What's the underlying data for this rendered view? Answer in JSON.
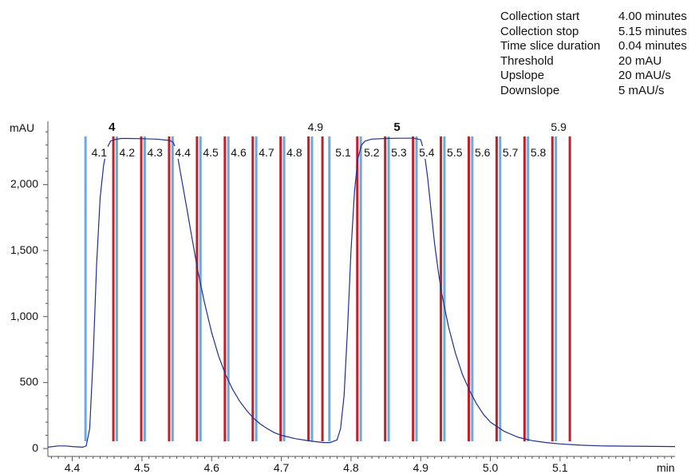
{
  "parameters": [
    {
      "label": "Collection start",
      "value": "4.00 minutes"
    },
    {
      "label": "Collection stop",
      "value": "5.15 minutes"
    },
    {
      "label": "Time slice duration",
      "value": "0.04 minutes"
    },
    {
      "label": "Threshold",
      "value": "20 mAU"
    },
    {
      "label": "Upslope",
      "value": "20 mAU/s"
    },
    {
      "label": "Downslope",
      "value": "5 mAU/s"
    }
  ],
  "chart_data": {
    "type": "line",
    "xlabel": "min",
    "ylabel": "mAU",
    "xlim": [
      4.365,
      5.265
    ],
    "ylim": [
      -60,
      2480
    ],
    "xticks": [
      4.4,
      4.5,
      4.6,
      4.7,
      4.8,
      4.9,
      5.0,
      5.1
    ],
    "xtick_labels": [
      "4.4",
      "4.5",
      "4.6",
      "4.7",
      "4.8",
      "4.9",
      "5.0",
      "5.1"
    ],
    "yticks": [
      0,
      500,
      1000,
      1500,
      2000
    ],
    "ytick_labels": [
      "0",
      "500",
      "1,000",
      "1,500",
      "2,000"
    ],
    "grid": false,
    "series": [
      {
        "color": "#1f2f8f",
        "x": [
          4.365,
          4.38,
          4.39,
          4.4,
          4.41,
          4.415,
          4.42,
          4.425,
          4.43,
          4.435,
          4.44,
          4.445,
          4.45,
          4.455,
          4.46,
          4.47,
          4.48,
          4.5,
          4.52,
          4.54,
          4.545,
          4.55,
          4.555,
          4.56,
          4.565,
          4.57,
          4.575,
          4.58,
          4.59,
          4.6,
          4.61,
          4.62,
          4.63,
          4.64,
          4.65,
          4.66,
          4.67,
          4.68,
          4.69,
          4.7,
          4.72,
          4.74,
          4.76,
          4.77,
          4.78,
          4.785,
          4.79,
          4.795,
          4.8,
          4.805,
          4.81,
          4.815,
          4.82,
          4.83,
          4.85,
          4.87,
          4.89,
          4.9,
          4.905,
          4.91,
          4.915,
          4.92,
          4.925,
          4.93,
          4.94,
          4.95,
          4.96,
          4.97,
          4.98,
          4.99,
          5.0,
          5.02,
          5.04,
          5.06,
          5.08,
          5.1,
          5.13,
          5.16,
          5.2,
          5.265
        ],
        "y": [
          10,
          20,
          20,
          15,
          12,
          10,
          20,
          150,
          700,
          1400,
          1900,
          2150,
          2280,
          2330,
          2340,
          2350,
          2350,
          2348,
          2345,
          2335,
          2320,
          2250,
          2100,
          1950,
          1800,
          1650,
          1500,
          1350,
          1100,
          880,
          700,
          560,
          450,
          360,
          290,
          230,
          185,
          150,
          120,
          100,
          75,
          58,
          45,
          45,
          65,
          150,
          400,
          900,
          1500,
          1950,
          2200,
          2300,
          2330,
          2345,
          2350,
          2352,
          2352,
          2340,
          2250,
          2050,
          1800,
          1550,
          1350,
          1180,
          920,
          720,
          560,
          440,
          340,
          260,
          200,
          130,
          85,
          60,
          45,
          35,
          25,
          20,
          18,
          15
        ]
      }
    ],
    "fraction_start_lines": [
      4.419,
      4.464,
      4.504,
      4.544,
      4.584,
      4.624,
      4.664,
      4.704,
      4.744,
      4.769,
      4.814,
      4.854,
      4.894,
      4.934,
      4.974,
      5.014,
      5.054,
      5.094
    ],
    "fraction_end_lines": [
      4.459,
      4.499,
      4.539,
      4.579,
      4.619,
      4.659,
      4.699,
      4.739,
      4.759,
      4.809,
      4.849,
      4.889,
      4.929,
      4.969,
      5.009,
      5.049,
      5.089,
      5.114
    ],
    "fraction_labels": [
      {
        "text": "4.1",
        "x": 4.439,
        "row": "main"
      },
      {
        "text": "4",
        "x": 4.457,
        "row": "top",
        "bold": true
      },
      {
        "text": "4.2",
        "x": 4.479,
        "row": "main"
      },
      {
        "text": "4.3",
        "x": 4.519,
        "row": "main"
      },
      {
        "text": "4.4",
        "x": 4.559,
        "row": "main"
      },
      {
        "text": "4.5",
        "x": 4.599,
        "row": "main"
      },
      {
        "text": "4.6",
        "x": 4.639,
        "row": "main"
      },
      {
        "text": "4.7",
        "x": 4.679,
        "row": "main"
      },
      {
        "text": "4.8",
        "x": 4.719,
        "row": "main"
      },
      {
        "text": "4.9",
        "x": 4.749,
        "row": "top"
      },
      {
        "text": "5.1",
        "x": 4.789,
        "row": "main"
      },
      {
        "text": "5",
        "x": 4.866,
        "row": "top",
        "bold": true
      },
      {
        "text": "5.2",
        "x": 4.83,
        "row": "main"
      },
      {
        "text": "5.3",
        "x": 4.869,
        "row": "main"
      },
      {
        "text": "5.4",
        "x": 4.909,
        "row": "main"
      },
      {
        "text": "5.5",
        "x": 4.949,
        "row": "main"
      },
      {
        "text": "5.6",
        "x": 4.989,
        "row": "main"
      },
      {
        "text": "5.7",
        "x": 5.029,
        "row": "main"
      },
      {
        "text": "5.8",
        "x": 5.069,
        "row": "main"
      },
      {
        "text": "5.9",
        "x": 5.098,
        "row": "top"
      }
    ],
    "colors": {
      "trace": "#1f2f8f",
      "start_line": "#6fa8dc",
      "end_line": "#c0202a",
      "axis": "#555555"
    }
  }
}
